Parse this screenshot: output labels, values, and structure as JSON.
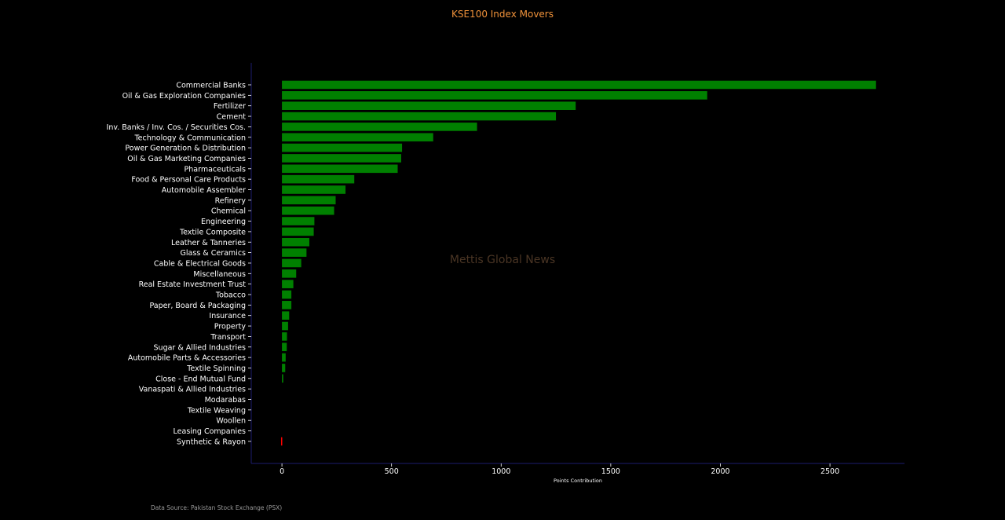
{
  "chart_data": {
    "type": "bar",
    "orientation": "horizontal",
    "title": "KSE100 Index Movers",
    "xlabel": "Points Contribution",
    "ylabel": "",
    "xlim": [
      -140,
      2840
    ],
    "xticks": [
      0,
      500,
      1000,
      1500,
      2000,
      2500
    ],
    "grid": false,
    "categories": [
      "Commercial Banks",
      "Oil & Gas Exploration Companies",
      "Fertilizer",
      "Cement",
      "Inv. Banks / Inv. Cos. / Securities Cos.",
      "Technology & Communication",
      "Power Generation & Distribution",
      "Oil & Gas Marketing Companies",
      "Pharmaceuticals",
      "Food & Personal Care Products",
      "Automobile Assembler",
      "Refinery",
      "Chemical",
      "Engineering",
      "Textile Composite",
      "Leather & Tanneries",
      "Glass & Ceramics",
      "Cable & Electrical Goods",
      "Miscellaneous",
      "Real Estate Investment Trust",
      "Tobacco",
      "Paper, Board & Packaging",
      "Insurance",
      "Property",
      "Transport",
      "Sugar & Allied Industries",
      "Automobile Parts & Accessories",
      "Textile Spinning",
      "Close - End Mutual Fund",
      "Vanaspati & Allied Industries",
      "Modarabas",
      "Textile Weaving",
      "Woollen",
      "Leasing Companies",
      "Synthetic & Rayon"
    ],
    "values": [
      2710,
      1940,
      1340,
      1250,
      890,
      690,
      548,
      544,
      528,
      330,
      290,
      245,
      238,
      148,
      145,
      125,
      112,
      88,
      65,
      52,
      43,
      43,
      33,
      28,
      23,
      22,
      17,
      15,
      6,
      0,
      0,
      0,
      0,
      0,
      -4
    ],
    "colors": {
      "positive": "#008000",
      "negative": "#ff0000"
    },
    "annotations": [
      "Mettis Global News",
      "Data Source: Pakistan Stock Exchange (PSX)"
    ]
  },
  "colors": {
    "background": "#000000",
    "title": "#f0923a",
    "text": "#ffffff",
    "axis_spine": "#1c1c6e",
    "watermark": "#4a3524",
    "source": "#9a9a9a"
  }
}
